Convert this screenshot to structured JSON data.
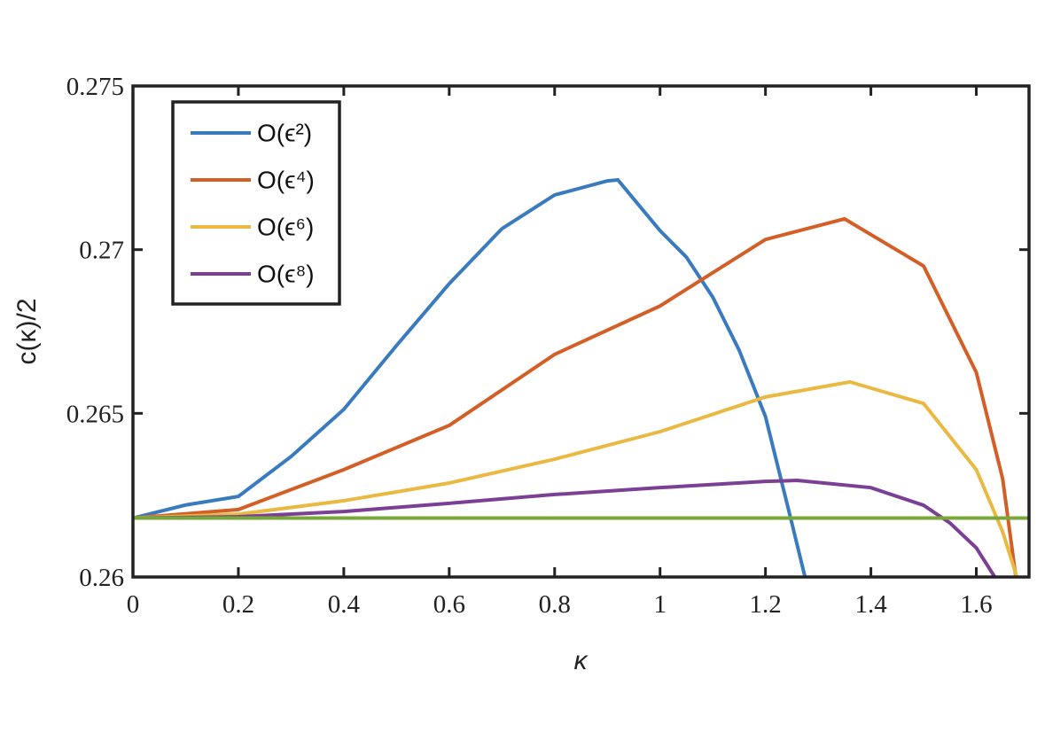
{
  "chart_data": {
    "type": "line",
    "x_label": "κ",
    "y_label": "c(κ)/2",
    "xlim": [
      0,
      1.7
    ],
    "ylim": [
      0.26,
      0.275
    ],
    "xticks": [
      0,
      0.2,
      0.4,
      0.6,
      0.8,
      1,
      1.2,
      1.4,
      1.6
    ],
    "yticks": [
      0.26,
      0.265,
      0.27,
      0.275
    ],
    "legend": "upper left",
    "series": [
      {
        "name": "O(ϵ²)",
        "color": "#3a7bbf",
        "x": [
          0,
          0.1,
          0.2,
          0.3,
          0.4,
          0.5,
          0.6,
          0.7,
          0.8,
          0.9,
          0.92,
          1.0,
          1.05,
          1.1,
          1.15,
          1.2,
          1.25,
          1.275
        ],
        "values": [
          0.2618,
          0.2622,
          0.26246,
          0.26368,
          0.26512,
          0.26707,
          0.26896,
          0.27064,
          0.27167,
          0.2721,
          0.27213,
          0.27058,
          0.26977,
          0.26855,
          0.26693,
          0.2649,
          0.26165,
          0.26
        ]
      },
      {
        "name": "O(ϵ⁴)",
        "color": "#d35f27",
        "x": [
          0,
          0.2,
          0.4,
          0.6,
          0.8,
          1.0,
          1.2,
          1.35,
          1.5,
          1.6,
          1.65,
          1.675
        ],
        "values": [
          0.2618,
          0.26206,
          0.26328,
          0.26463,
          0.2668,
          0.26828,
          0.27031,
          0.27094,
          0.2695,
          0.26625,
          0.263,
          0.26
        ]
      },
      {
        "name": "O(ϵ⁶)",
        "color": "#eab942",
        "x": [
          0,
          0.2,
          0.4,
          0.6,
          0.8,
          1.0,
          1.2,
          1.36,
          1.5,
          1.6,
          1.65,
          1.677
        ],
        "values": [
          0.2618,
          0.26192,
          0.26233,
          0.26287,
          0.2636,
          0.26444,
          0.2655,
          0.26596,
          0.2653,
          0.26328,
          0.26138,
          0.26
        ]
      },
      {
        "name": "O(ϵ⁸)",
        "color": "#7b3f93",
        "x": [
          0,
          0.2,
          0.4,
          0.6,
          0.8,
          1.0,
          1.2,
          1.26,
          1.4,
          1.5,
          1.55,
          1.6,
          1.635
        ],
        "values": [
          0.2618,
          0.26184,
          0.262,
          0.26225,
          0.26252,
          0.26273,
          0.26292,
          0.26295,
          0.26273,
          0.26219,
          0.26165,
          0.26089,
          0.26
        ]
      },
      {
        "color": "#78a83a",
        "x": [
          0,
          1.7
        ],
        "values": [
          0.2618,
          0.2618
        ]
      }
    ]
  }
}
